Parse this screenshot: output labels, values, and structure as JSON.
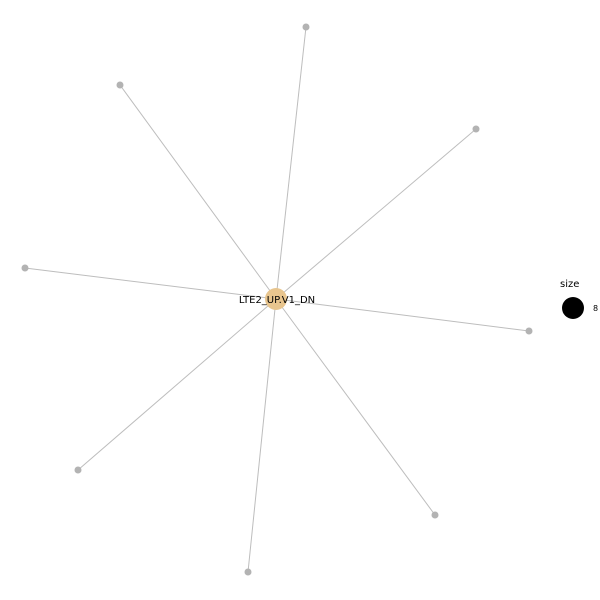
{
  "network": {
    "hub_label": "LTE2_UP.V1_DN",
    "leaf_count": 8,
    "colors": {
      "hub": "#e8c58e",
      "leaf": "#b3b3b3",
      "edge": "#bdbdbd"
    }
  },
  "legend": {
    "title": "size",
    "value": "8"
  }
}
